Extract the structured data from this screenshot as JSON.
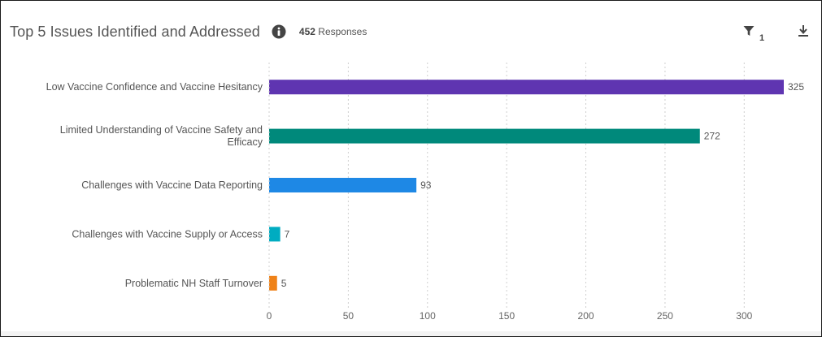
{
  "header": {
    "title": "Top 5 Issues Identified and Addressed",
    "responses_count": "452",
    "responses_label": "Responses",
    "filter_count": "1",
    "info_icon": "info-circle-icon",
    "filter_icon": "funnel-icon",
    "download_icon": "download-icon"
  },
  "chart_data": {
    "type": "bar",
    "orientation": "horizontal",
    "categories": [
      [
        "Low Vaccine Confidence and Vaccine Hesitancy"
      ],
      [
        "Limited Understanding of Vaccine Safety and",
        "Efficacy"
      ],
      [
        "Challenges with Vaccine Data Reporting"
      ],
      [
        "Challenges with Vaccine Supply or Access"
      ],
      [
        "Problematic NH Staff Turnover"
      ]
    ],
    "values": [
      325,
      272,
      93,
      7,
      5
    ],
    "colors": [
      "#5f35b1",
      "#00897b",
      "#1e88e5",
      "#00acc1",
      "#ef8218"
    ],
    "xlim": [
      0,
      325
    ],
    "xticks": [
      0,
      50,
      100,
      150,
      200,
      250,
      300
    ],
    "grid": true,
    "data_labels": true
  }
}
